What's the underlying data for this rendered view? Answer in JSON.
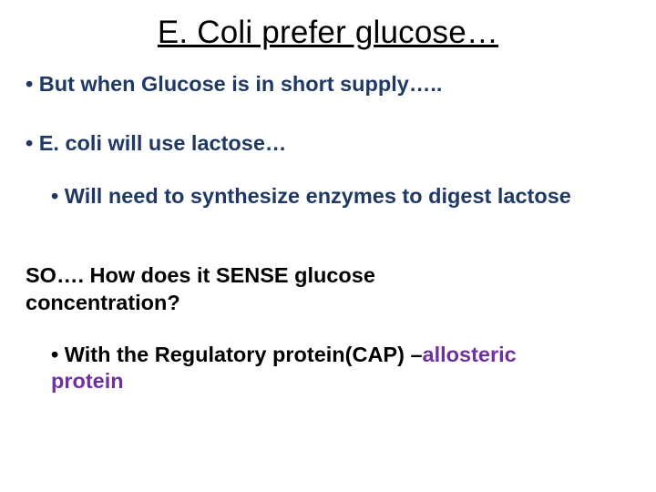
{
  "title": "E. Coli prefer glucose…",
  "bullets": {
    "b1": "• But  when Glucose  is in short supply…..",
    "b2": "• E. coli will use lactose…",
    "b3": "• Will need to synthesize enzymes to digest lactose",
    "b4": "SO…. How does it SENSE glucose concentration?",
    "b5_prefix": "• With the Regulatory protein(CAP) –",
    "b5_highlight": "allosteric protein"
  },
  "colors": {
    "title": "#000000",
    "darkblue": "#1f3864",
    "black": "#000000",
    "purple": "#7030a0",
    "background": "#ffffff"
  },
  "font_sizes": {
    "title": 35,
    "body": 23.5
  }
}
